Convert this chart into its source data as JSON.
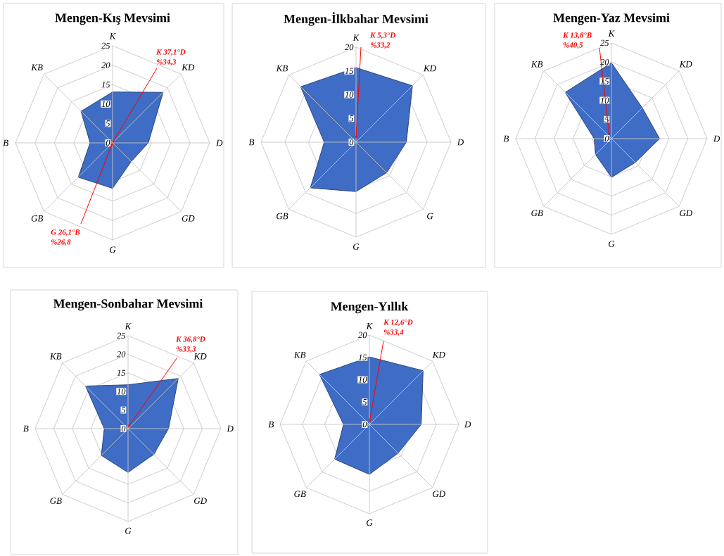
{
  "chart_data": [
    {
      "type": "radar",
      "title": "Mengen-Kış Mevsimi",
      "categories": [
        "K",
        "KD",
        "D",
        "GD",
        "G",
        "GB",
        "B",
        "KB"
      ],
      "series": [
        {
          "color": "#3f6cc4",
          "values": [
            13.1,
            18.4,
            9.2,
            6.8,
            11.7,
            12.5,
            5.8,
            11.5
          ]
        }
      ],
      "ylim": [
        0,
        25
      ],
      "yticks": [
        0,
        5,
        10,
        15,
        20,
        25
      ],
      "grid": true,
      "annotations": [
        "K 37,1°D",
        "%34,3",
        "G 26,1°B",
        "%26,8"
      ]
    },
    {
      "type": "radar",
      "title": "Mengen-İlkbahar Mevsimi",
      "categories": [
        "K",
        "KD",
        "D",
        "G",
        "G",
        "GB",
        "B",
        "KB"
      ],
      "series": [
        {
          "color": "#3f6cc4",
          "values": [
            15.7,
            16.8,
            10.6,
            9.1,
            10.4,
            13.6,
            6.7,
            16.5
          ]
        }
      ],
      "ylim": [
        0,
        20
      ],
      "yticks": [
        0,
        5,
        10,
        15,
        20
      ],
      "grid": true,
      "annotations": [
        "K 5,3°D",
        "%33,2"
      ]
    },
    {
      "type": "radar",
      "title": "Mengen-Yaz Mevsimi",
      "categories": [
        "K",
        "KD",
        "D",
        "GD",
        "G",
        "GB",
        "B",
        "KB"
      ],
      "series": [
        {
          "color": "#3f6cc4",
          "values": [
            19.8,
            11.4,
            12.6,
            8.8,
            10.1,
            5.9,
            4.5,
            17.1
          ]
        }
      ],
      "ylim": [
        0,
        25
      ],
      "yticks": [
        0,
        5,
        10,
        15,
        20,
        25
      ],
      "grid": true,
      "annotations": [
        "K 13,8°B",
        "%40,5"
      ]
    },
    {
      "type": "radar",
      "title": "Mengen-Sonbahar Mevsimi",
      "categories": [
        "K",
        "KD",
        "D",
        "GD",
        "G",
        "GB",
        "B",
        "KB"
      ],
      "series": [
        {
          "color": "#3f6cc4",
          "values": [
            11.8,
            19.1,
            10.9,
            9.8,
            11.8,
            10.2,
            6.4,
            16.2
          ]
        }
      ],
      "ylim": [
        0,
        25
      ],
      "yticks": [
        0,
        5,
        10,
        15,
        20,
        25
      ],
      "grid": true,
      "annotations": [
        "K 36,8°D",
        "%33,3"
      ]
    },
    {
      "type": "radar",
      "title": "Mengen-Yıllık",
      "categories": [
        "K",
        "KD",
        "D",
        "GD",
        "G",
        "GB",
        "B",
        "KB"
      ],
      "series": [
        {
          "color": "#3f6cc4",
          "values": [
            15.1,
            17.0,
            11.6,
            9.1,
            11.2,
            11.0,
            5.8,
            15.8
          ]
        }
      ],
      "ylim": [
        0,
        20
      ],
      "yticks": [
        0,
        5,
        10,
        15,
        20
      ],
      "grid": true,
      "annotations": [
        "K 12,6°D",
        "%33,4"
      ]
    }
  ]
}
